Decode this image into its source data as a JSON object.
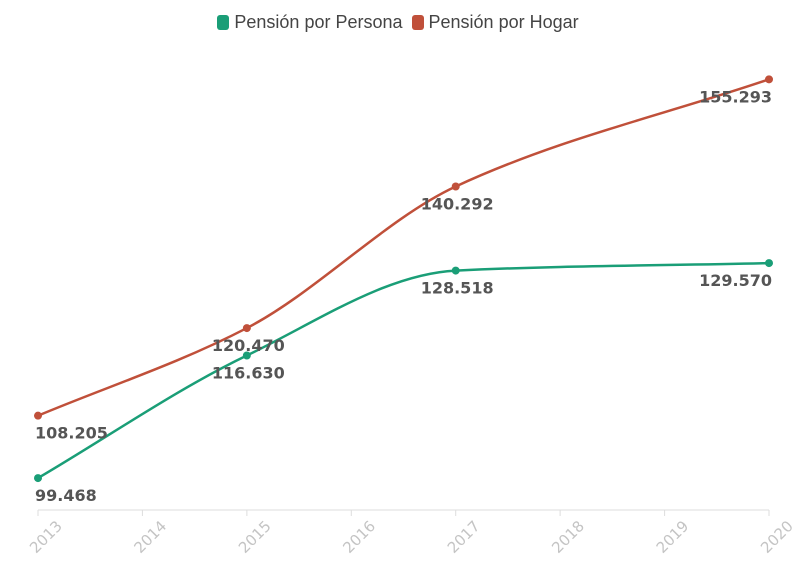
{
  "chart_data": {
    "type": "line",
    "title": "",
    "xlabel": "",
    "ylabel": "",
    "x": [
      "2013",
      "2014",
      "2015",
      "2016",
      "2017",
      "2018",
      "2019",
      "2020"
    ],
    "ylim": [
      95,
      158
    ],
    "grid": false,
    "legend_position": "top-center",
    "series": [
      {
        "name": "Pensión por Persona",
        "color": "#1a9e77",
        "points": [
          {
            "x": "2013",
            "y": 99.468,
            "label": "99.468"
          },
          {
            "x": "2015",
            "y": 116.63,
            "label": "116.630"
          },
          {
            "x": "2017",
            "y": 128.518,
            "label": "128.518"
          },
          {
            "x": "2020",
            "y": 129.57,
            "label": "129.570"
          }
        ]
      },
      {
        "name": "Pensión por Hogar",
        "color": "#c0503a",
        "points": [
          {
            "x": "2013",
            "y": 108.205,
            "label": "108.205"
          },
          {
            "x": "2015",
            "y": 120.47,
            "label": "120.470"
          },
          {
            "x": "2017",
            "y": 140.292,
            "label": "140.292"
          },
          {
            "x": "2020",
            "y": 155.293,
            "label": "155.293"
          }
        ]
      }
    ]
  }
}
